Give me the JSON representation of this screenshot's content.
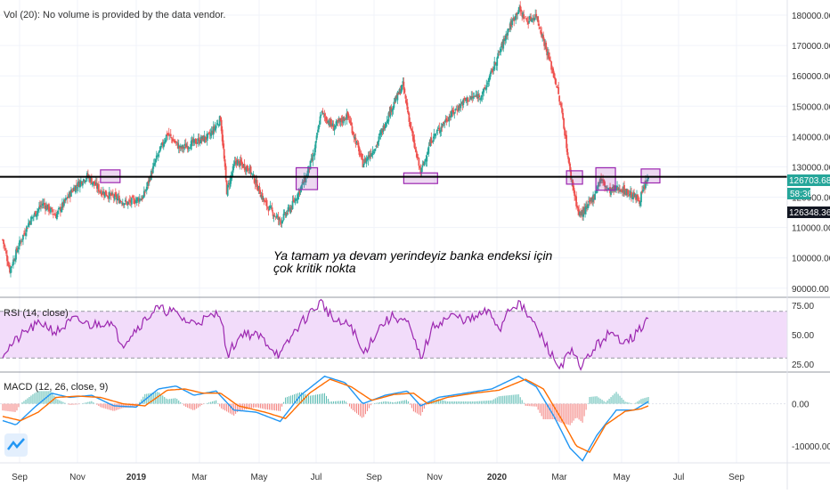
{
  "header": {
    "volume_notice": "Vol (20): No volume is provided by the data vendor."
  },
  "annotation": {
    "line1": "Ya tamam ya devam yerindeyiz banka endeksi için",
    "line2": "çok kritik nokta"
  },
  "colors": {
    "up": "#26a69a",
    "down": "#ef5350",
    "rsi_line": "#9c27b0",
    "rsi_band": "#f2dcfa",
    "macd_line": "#2196f3",
    "signal_line": "#ff6d00",
    "support_line": "#000000",
    "highlight_box": "#9c27b0",
    "last_price_tag": "#26a69a",
    "dark_tag": "#131722"
  },
  "chart_data": [
    {
      "type": "candlestick",
      "pane": "price",
      "x_ticks": [
        "Sep",
        "Nov",
        "2019",
        "Mar",
        "May",
        "Jul",
        "Sep",
        "Nov",
        "2020",
        "Mar",
        "May",
        "Jul",
        "Sep"
      ],
      "y_ticks": [
        "90000.00",
        "100000.00",
        "110000.00",
        "120000.00",
        "130000.00",
        "140000.00",
        "150000.00",
        "160000.00",
        "170000.00",
        "180000.00"
      ],
      "ylim": [
        87000,
        185000
      ],
      "support_level": 126703.68,
      "price_tags": [
        "126703.68",
        "58:36",
        "126348.36"
      ],
      "path_points": [
        {
          "i": 0,
          "v": 106000
        },
        {
          "i": 8,
          "v": 96000
        },
        {
          "i": 18,
          "v": 104000
        },
        {
          "i": 30,
          "v": 112000
        },
        {
          "i": 45,
          "v": 118000
        },
        {
          "i": 60,
          "v": 114000
        },
        {
          "i": 80,
          "v": 123000
        },
        {
          "i": 95,
          "v": 127000
        },
        {
          "i": 110,
          "v": 122000
        },
        {
          "i": 125,
          "v": 120000
        },
        {
          "i": 140,
          "v": 118000
        },
        {
          "i": 158,
          "v": 120000
        },
        {
          "i": 172,
          "v": 132000
        },
        {
          "i": 185,
          "v": 141000
        },
        {
          "i": 200,
          "v": 136000
        },
        {
          "i": 215,
          "v": 138000
        },
        {
          "i": 232,
          "v": 140000
        },
        {
          "i": 245,
          "v": 146000
        },
        {
          "i": 252,
          "v": 122000
        },
        {
          "i": 262,
          "v": 132000
        },
        {
          "i": 278,
          "v": 129000
        },
        {
          "i": 295,
          "v": 118000
        },
        {
          "i": 312,
          "v": 112000
        },
        {
          "i": 325,
          "v": 117000
        },
        {
          "i": 340,
          "v": 126000
        },
        {
          "i": 350,
          "v": 134000
        },
        {
          "i": 358,
          "v": 148000
        },
        {
          "i": 372,
          "v": 143000
        },
        {
          "i": 388,
          "v": 147000
        },
        {
          "i": 405,
          "v": 131000
        },
        {
          "i": 420,
          "v": 137000
        },
        {
          "i": 435,
          "v": 148000
        },
        {
          "i": 450,
          "v": 157000
        },
        {
          "i": 462,
          "v": 138000
        },
        {
          "i": 470,
          "v": 128000
        },
        {
          "i": 482,
          "v": 139000
        },
        {
          "i": 500,
          "v": 146000
        },
        {
          "i": 520,
          "v": 152000
        },
        {
          "i": 540,
          "v": 154000
        },
        {
          "i": 555,
          "v": 165000
        },
        {
          "i": 568,
          "v": 175000
        },
        {
          "i": 580,
          "v": 182000
        },
        {
          "i": 590,
          "v": 178000
        },
        {
          "i": 600,
          "v": 180000
        },
        {
          "i": 612,
          "v": 168000
        },
        {
          "i": 622,
          "v": 158000
        },
        {
          "i": 630,
          "v": 146000
        },
        {
          "i": 638,
          "v": 128000
        },
        {
          "i": 648,
          "v": 114000
        },
        {
          "i": 656,
          "v": 116000
        },
        {
          "i": 664,
          "v": 120000
        },
        {
          "i": 672,
          "v": 126000
        },
        {
          "i": 682,
          "v": 122000
        },
        {
          "i": 694,
          "v": 123000
        },
        {
          "i": 706,
          "v": 121000
        },
        {
          "i": 716,
          "v": 119000
        },
        {
          "i": 726,
          "v": 126500
        }
      ],
      "highlight_boxes": [
        {
          "i0": 110,
          "i1": 132,
          "v0": 124800,
          "v1": 129000
        },
        {
          "i0": 330,
          "i1": 354,
          "v0": 122500,
          "v1": 129700
        },
        {
          "i0": 451,
          "i1": 489,
          "v0": 124500,
          "v1": 128000
        },
        {
          "i0": 634,
          "i1": 652,
          "v0": 124300,
          "v1": 128700
        },
        {
          "i0": 667,
          "i1": 689,
          "v0": 122300,
          "v1": 129700
        },
        {
          "i0": 718,
          "i1": 739,
          "v0": 124700,
          "v1": 129300
        }
      ]
    },
    {
      "type": "line",
      "pane": "rsi",
      "title": "RSI (14, close)",
      "y_ticks": [
        "25.00",
        "50.00",
        "75.00"
      ],
      "ylim": [
        18,
        82
      ],
      "band": [
        30,
        70
      ],
      "path_points": [
        {
          "i": 0,
          "v": 34
        },
        {
          "i": 15,
          "v": 45
        },
        {
          "i": 30,
          "v": 55
        },
        {
          "i": 45,
          "v": 60
        },
        {
          "i": 60,
          "v": 52
        },
        {
          "i": 80,
          "v": 63
        },
        {
          "i": 100,
          "v": 58
        },
        {
          "i": 120,
          "v": 62
        },
        {
          "i": 135,
          "v": 42
        },
        {
          "i": 150,
          "v": 55
        },
        {
          "i": 172,
          "v": 72
        },
        {
          "i": 190,
          "v": 70
        },
        {
          "i": 210,
          "v": 60
        },
        {
          "i": 232,
          "v": 64
        },
        {
          "i": 245,
          "v": 70
        },
        {
          "i": 252,
          "v": 32
        },
        {
          "i": 270,
          "v": 52
        },
        {
          "i": 290,
          "v": 48
        },
        {
          "i": 312,
          "v": 32
        },
        {
          "i": 330,
          "v": 55
        },
        {
          "i": 345,
          "v": 68
        },
        {
          "i": 358,
          "v": 78
        },
        {
          "i": 375,
          "v": 60
        },
        {
          "i": 392,
          "v": 58
        },
        {
          "i": 405,
          "v": 33
        },
        {
          "i": 425,
          "v": 58
        },
        {
          "i": 440,
          "v": 66
        },
        {
          "i": 455,
          "v": 60
        },
        {
          "i": 470,
          "v": 30
        },
        {
          "i": 485,
          "v": 58
        },
        {
          "i": 505,
          "v": 66
        },
        {
          "i": 525,
          "v": 62
        },
        {
          "i": 545,
          "v": 70
        },
        {
          "i": 560,
          "v": 55
        },
        {
          "i": 568,
          "v": 72
        },
        {
          "i": 580,
          "v": 77
        },
        {
          "i": 595,
          "v": 62
        },
        {
          "i": 612,
          "v": 40
        },
        {
          "i": 625,
          "v": 22
        },
        {
          "i": 640,
          "v": 35
        },
        {
          "i": 650,
          "v": 22
        },
        {
          "i": 665,
          "v": 38
        },
        {
          "i": 680,
          "v": 50
        },
        {
          "i": 695,
          "v": 46
        },
        {
          "i": 710,
          "v": 48
        },
        {
          "i": 726,
          "v": 64
        }
      ]
    },
    {
      "type": "line",
      "pane": "macd",
      "title": "MACD (12, 26, close, 9)",
      "y_ticks": [
        "0.00",
        "-10000.00"
      ],
      "ylim": [
        -14000,
        7500
      ],
      "macd_points": [
        {
          "i": 0,
          "v": -4000
        },
        {
          "i": 15,
          "v": -5000
        },
        {
          "i": 35,
          "v": -1000
        },
        {
          "i": 55,
          "v": 2500
        },
        {
          "i": 75,
          "v": 1500
        },
        {
          "i": 100,
          "v": 2000
        },
        {
          "i": 125,
          "v": -500
        },
        {
          "i": 150,
          "v": -800
        },
        {
          "i": 175,
          "v": 3500
        },
        {
          "i": 195,
          "v": 4200
        },
        {
          "i": 215,
          "v": 2000
        },
        {
          "i": 240,
          "v": 3000
        },
        {
          "i": 260,
          "v": -1500
        },
        {
          "i": 285,
          "v": -2000
        },
        {
          "i": 312,
          "v": -4200
        },
        {
          "i": 335,
          "v": 2000
        },
        {
          "i": 362,
          "v": 6500
        },
        {
          "i": 385,
          "v": 5000
        },
        {
          "i": 405,
          "v": 0
        },
        {
          "i": 430,
          "v": 2000
        },
        {
          "i": 455,
          "v": 3000
        },
        {
          "i": 470,
          "v": -500
        },
        {
          "i": 490,
          "v": 1500
        },
        {
          "i": 520,
          "v": 2500
        },
        {
          "i": 550,
          "v": 3500
        },
        {
          "i": 580,
          "v": 6500
        },
        {
          "i": 600,
          "v": 4000
        },
        {
          "i": 620,
          "v": -3000
        },
        {
          "i": 638,
          "v": -10500
        },
        {
          "i": 652,
          "v": -13500
        },
        {
          "i": 668,
          "v": -7500
        },
        {
          "i": 690,
          "v": -1500
        },
        {
          "i": 710,
          "v": -1500
        },
        {
          "i": 726,
          "v": 500
        }
      ],
      "signal_points": [
        {
          "i": 0,
          "v": -3000
        },
        {
          "i": 20,
          "v": -4000
        },
        {
          "i": 40,
          "v": -2000
        },
        {
          "i": 60,
          "v": 1500
        },
        {
          "i": 85,
          "v": 1800
        },
        {
          "i": 110,
          "v": 1500
        },
        {
          "i": 135,
          "v": 0
        },
        {
          "i": 160,
          "v": -500
        },
        {
          "i": 185,
          "v": 3200
        },
        {
          "i": 205,
          "v": 3500
        },
        {
          "i": 225,
          "v": 2500
        },
        {
          "i": 245,
          "v": 2500
        },
        {
          "i": 265,
          "v": -500
        },
        {
          "i": 295,
          "v": -2000
        },
        {
          "i": 318,
          "v": -3500
        },
        {
          "i": 345,
          "v": 2500
        },
        {
          "i": 368,
          "v": 5800
        },
        {
          "i": 392,
          "v": 4000
        },
        {
          "i": 415,
          "v": 800
        },
        {
          "i": 440,
          "v": 2200
        },
        {
          "i": 462,
          "v": 2500
        },
        {
          "i": 478,
          "v": 0
        },
        {
          "i": 500,
          "v": 1500
        },
        {
          "i": 530,
          "v": 2500
        },
        {
          "i": 558,
          "v": 3200
        },
        {
          "i": 588,
          "v": 5800
        },
        {
          "i": 608,
          "v": 3500
        },
        {
          "i": 628,
          "v": -3500
        },
        {
          "i": 645,
          "v": -10000
        },
        {
          "i": 660,
          "v": -11500
        },
        {
          "i": 678,
          "v": -5000
        },
        {
          "i": 700,
          "v": -1800
        },
        {
          "i": 718,
          "v": -1200
        },
        {
          "i": 726,
          "v": -500
        }
      ]
    }
  ]
}
